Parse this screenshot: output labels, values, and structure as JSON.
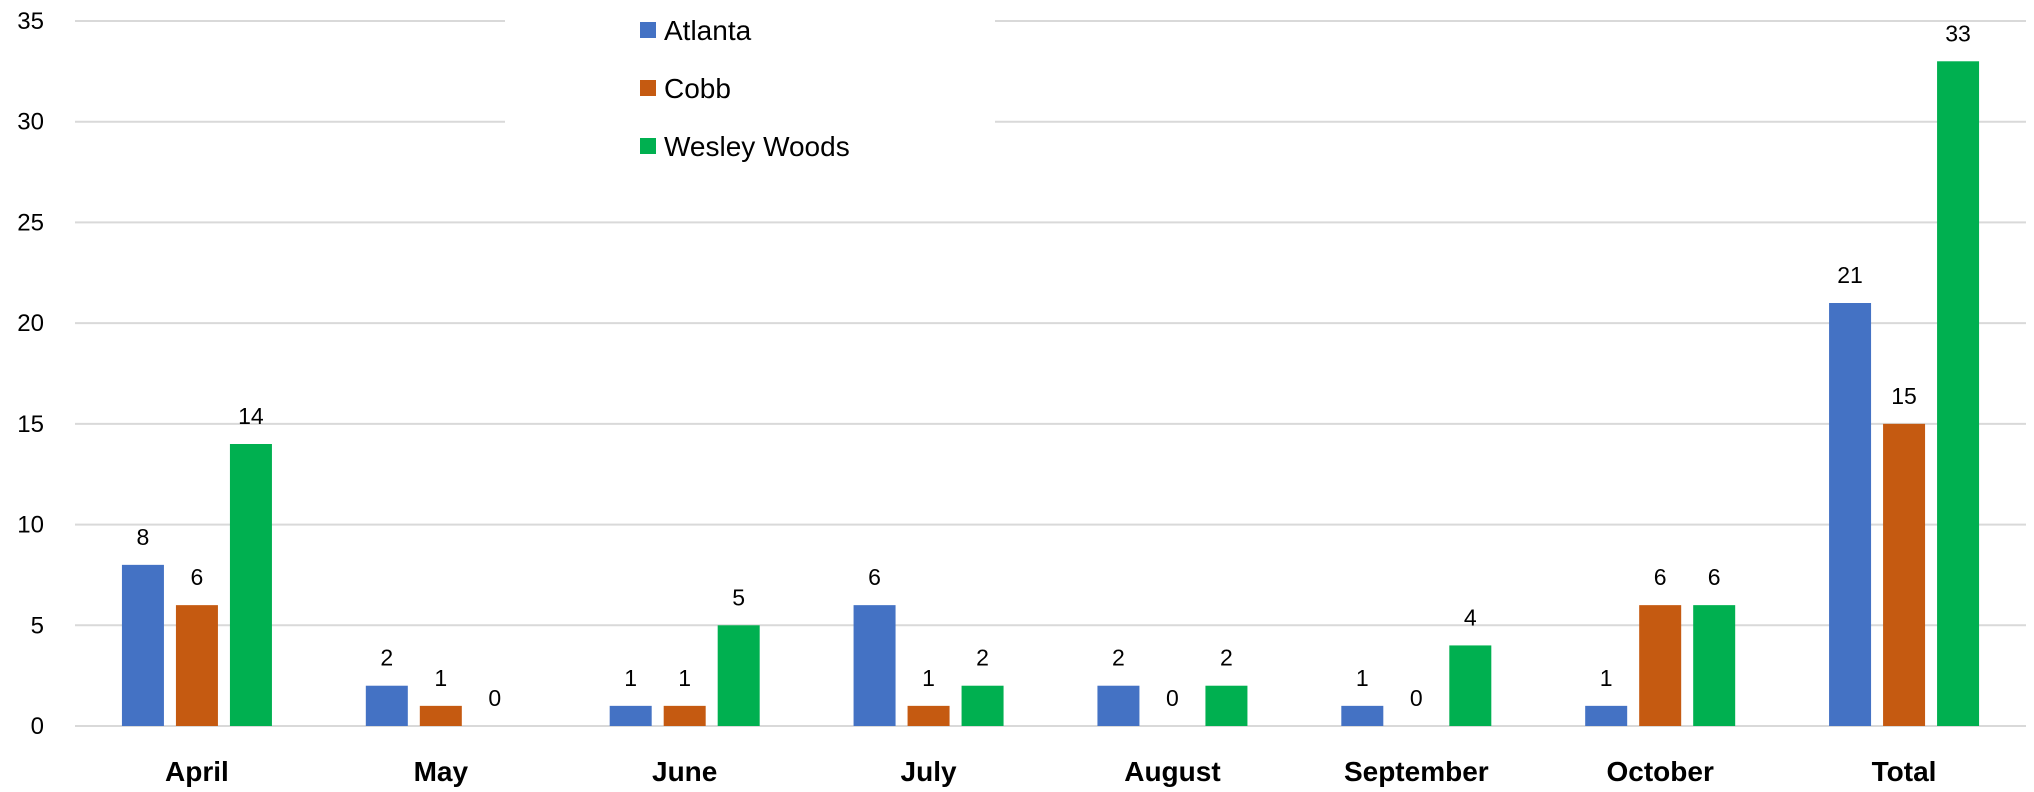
{
  "chart_data": {
    "type": "bar",
    "title": "",
    "xlabel": "",
    "ylabel": "",
    "categories": [
      "April",
      "May",
      "June",
      "July",
      "August",
      "September",
      "October",
      "Total"
    ],
    "series": [
      {
        "name": "Atlanta",
        "color": "#4472c4",
        "values": [
          8,
          2,
          1,
          6,
          2,
          1,
          1,
          21
        ]
      },
      {
        "name": "Cobb",
        "color": "#c55a11",
        "values": [
          6,
          1,
          1,
          1,
          0,
          0,
          6,
          15
        ]
      },
      {
        "name": "Wesley Woods",
        "color": "#00b050",
        "values": [
          14,
          0,
          5,
          2,
          2,
          4,
          6,
          33
        ]
      }
    ],
    "ylim": [
      0,
      35
    ],
    "yticks": [
      0,
      5,
      10,
      15,
      20,
      25,
      30,
      35
    ],
    "grid": true,
    "legend": {
      "position": "top-center"
    },
    "data_labels": true
  }
}
